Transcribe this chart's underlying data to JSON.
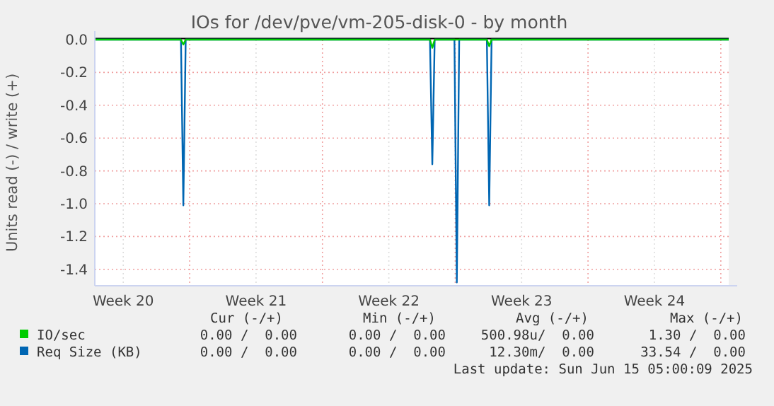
{
  "chart_data": {
    "type": "line",
    "title": "IOs for /dev/pve/vm-205-disk-0 - by month",
    "ylabel": "Units read (-) / write (+)",
    "xlim": [
      "2025-05-14T00:00",
      "2025-06-16T10:00"
    ],
    "ylim": [
      -1.5,
      0
    ],
    "xticks": [
      {
        "value": "2025-05-15T12:00",
        "label": "Week 20"
      },
      {
        "value": "2025-05-19",
        "label": null
      },
      {
        "value": "2025-05-22T12:00",
        "label": "Week 21"
      },
      {
        "value": "2025-05-26",
        "label": null
      },
      {
        "value": "2025-05-29T12:00",
        "label": "Week 22"
      },
      {
        "value": "2025-06-02",
        "label": null
      },
      {
        "value": "2025-06-05T12:00",
        "label": "Week 23"
      },
      {
        "value": "2025-06-09",
        "label": null
      },
      {
        "value": "2025-06-12T12:00",
        "label": "Week 24"
      },
      {
        "value": "2025-06-16",
        "label": null
      }
    ],
    "yticks": [
      {
        "value": 0,
        "label": "0.0"
      },
      {
        "value": -0.2,
        "label": "-0.2"
      },
      {
        "value": -0.4,
        "label": "-0.4"
      },
      {
        "value": -0.6,
        "label": "-0.6"
      },
      {
        "value": -0.8,
        "label": "-0.8"
      },
      {
        "value": -1,
        "label": "-1.0"
      },
      {
        "value": -1.2,
        "label": "-1.2"
      },
      {
        "value": -1.4,
        "label": "-1.4"
      }
    ],
    "grid": true,
    "legend": "bottom left",
    "marker": "none",
    "line_style": "solid",
    "series": [
      {
        "name": "Req Size (KB)",
        "color": "#0066b3",
        "x": [
          "2025-05-14T00:00",
          "2025-05-18T13:00",
          "2025-05-18T16:00",
          "2025-05-18T19:00",
          "2025-05-31T16:00",
          "2025-05-31T19:00",
          "2025-05-31T22:00",
          "2025-06-01T23:00",
          "2025-06-02T02:00",
          "2025-06-02T05:00",
          "2025-06-03T16:00",
          "2025-06-03T19:00",
          "2025-06-03T22:00",
          "2025-06-16T10:00"
        ],
        "values": [
          0,
          0,
          -1.01,
          0,
          0,
          -0.76,
          0,
          0,
          -1.48,
          0,
          0,
          -1.01,
          0,
          0
        ]
      },
      {
        "name": "IO/sec",
        "color": "#00cc00",
        "x": [
          "2025-05-14T00:00",
          "2025-05-18T13:00",
          "2025-05-18T16:00",
          "2025-05-18T19:00",
          "2025-05-31T16:00",
          "2025-05-31T19:00",
          "2025-05-31T22:00",
          "2025-06-03T16:00",
          "2025-06-03T19:00",
          "2025-06-03T22:00",
          "2025-06-16T10:00"
        ],
        "values": [
          0,
          0,
          -0.03,
          0,
          0,
          -0.05,
          0,
          0,
          -0.04,
          0,
          0
        ]
      }
    ],
    "annotations": [
      "Cur (-/+)",
      "Min (-/+)",
      "Avg (-/+)",
      "Max (-/+)",
      "0.00 /  0.00",
      "0.00 /  0.00",
      "500.98u/  0.00",
      "1.30 /  0.00",
      "0.00 /  0.00",
      "0.00 /  0.00",
      "12.30m/  0.00",
      "33.54 /  0.00",
      "Last update: Sun Jun 15 05:00:09 2025"
    ]
  }
}
